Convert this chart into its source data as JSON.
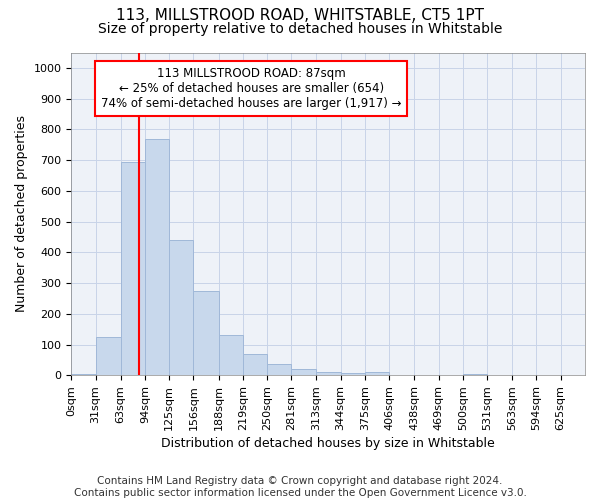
{
  "title": "113, MILLSTROOD ROAD, WHITSTABLE, CT5 1PT",
  "subtitle": "Size of property relative to detached houses in Whitstable",
  "xlabel": "Distribution of detached houses by size in Whitstable",
  "ylabel": "Number of detached properties",
  "footer_line1": "Contains HM Land Registry data © Crown copyright and database right 2024.",
  "footer_line2": "Contains public sector information licensed under the Open Government Licence v3.0.",
  "bin_edges": [
    0,
    31,
    63,
    94,
    125,
    156,
    188,
    219,
    250,
    281,
    313,
    344,
    375,
    406,
    438,
    469,
    500,
    531,
    563,
    594,
    625,
    656
  ],
  "bin_labels": [
    "0sqm",
    "31sqm",
    "63sqm",
    "94sqm",
    "125sqm",
    "156sqm",
    "188sqm",
    "219sqm",
    "250sqm",
    "281sqm",
    "313sqm",
    "344sqm",
    "375sqm",
    "406sqm",
    "438sqm",
    "469sqm",
    "500sqm",
    "531sqm",
    "563sqm",
    "594sqm",
    "625sqm"
  ],
  "bar_values": [
    5,
    125,
    695,
    770,
    440,
    275,
    130,
    70,
    38,
    20,
    12,
    8,
    10,
    0,
    0,
    0,
    5,
    0,
    0,
    0,
    0
  ],
  "bar_color": "#c8d8ec",
  "bar_edge_color": "#a0b8d8",
  "annotation_line1": "113 MILLSTROOD ROAD: 87sqm",
  "annotation_line2": "← 25% of detached houses are smaller (654)",
  "annotation_line3": "74% of semi-detached houses are larger (1,917) →",
  "ylim": [
    0,
    1050
  ],
  "xlim_min": 0,
  "xlim_max": 656,
  "grid_color": "#c8d4e8",
  "bg_color": "#eef2f8",
  "title_fontsize": 11,
  "subtitle_fontsize": 10,
  "axis_label_fontsize": 9,
  "tick_fontsize": 8,
  "footer_fontsize": 7.5,
  "red_line_x": 87
}
